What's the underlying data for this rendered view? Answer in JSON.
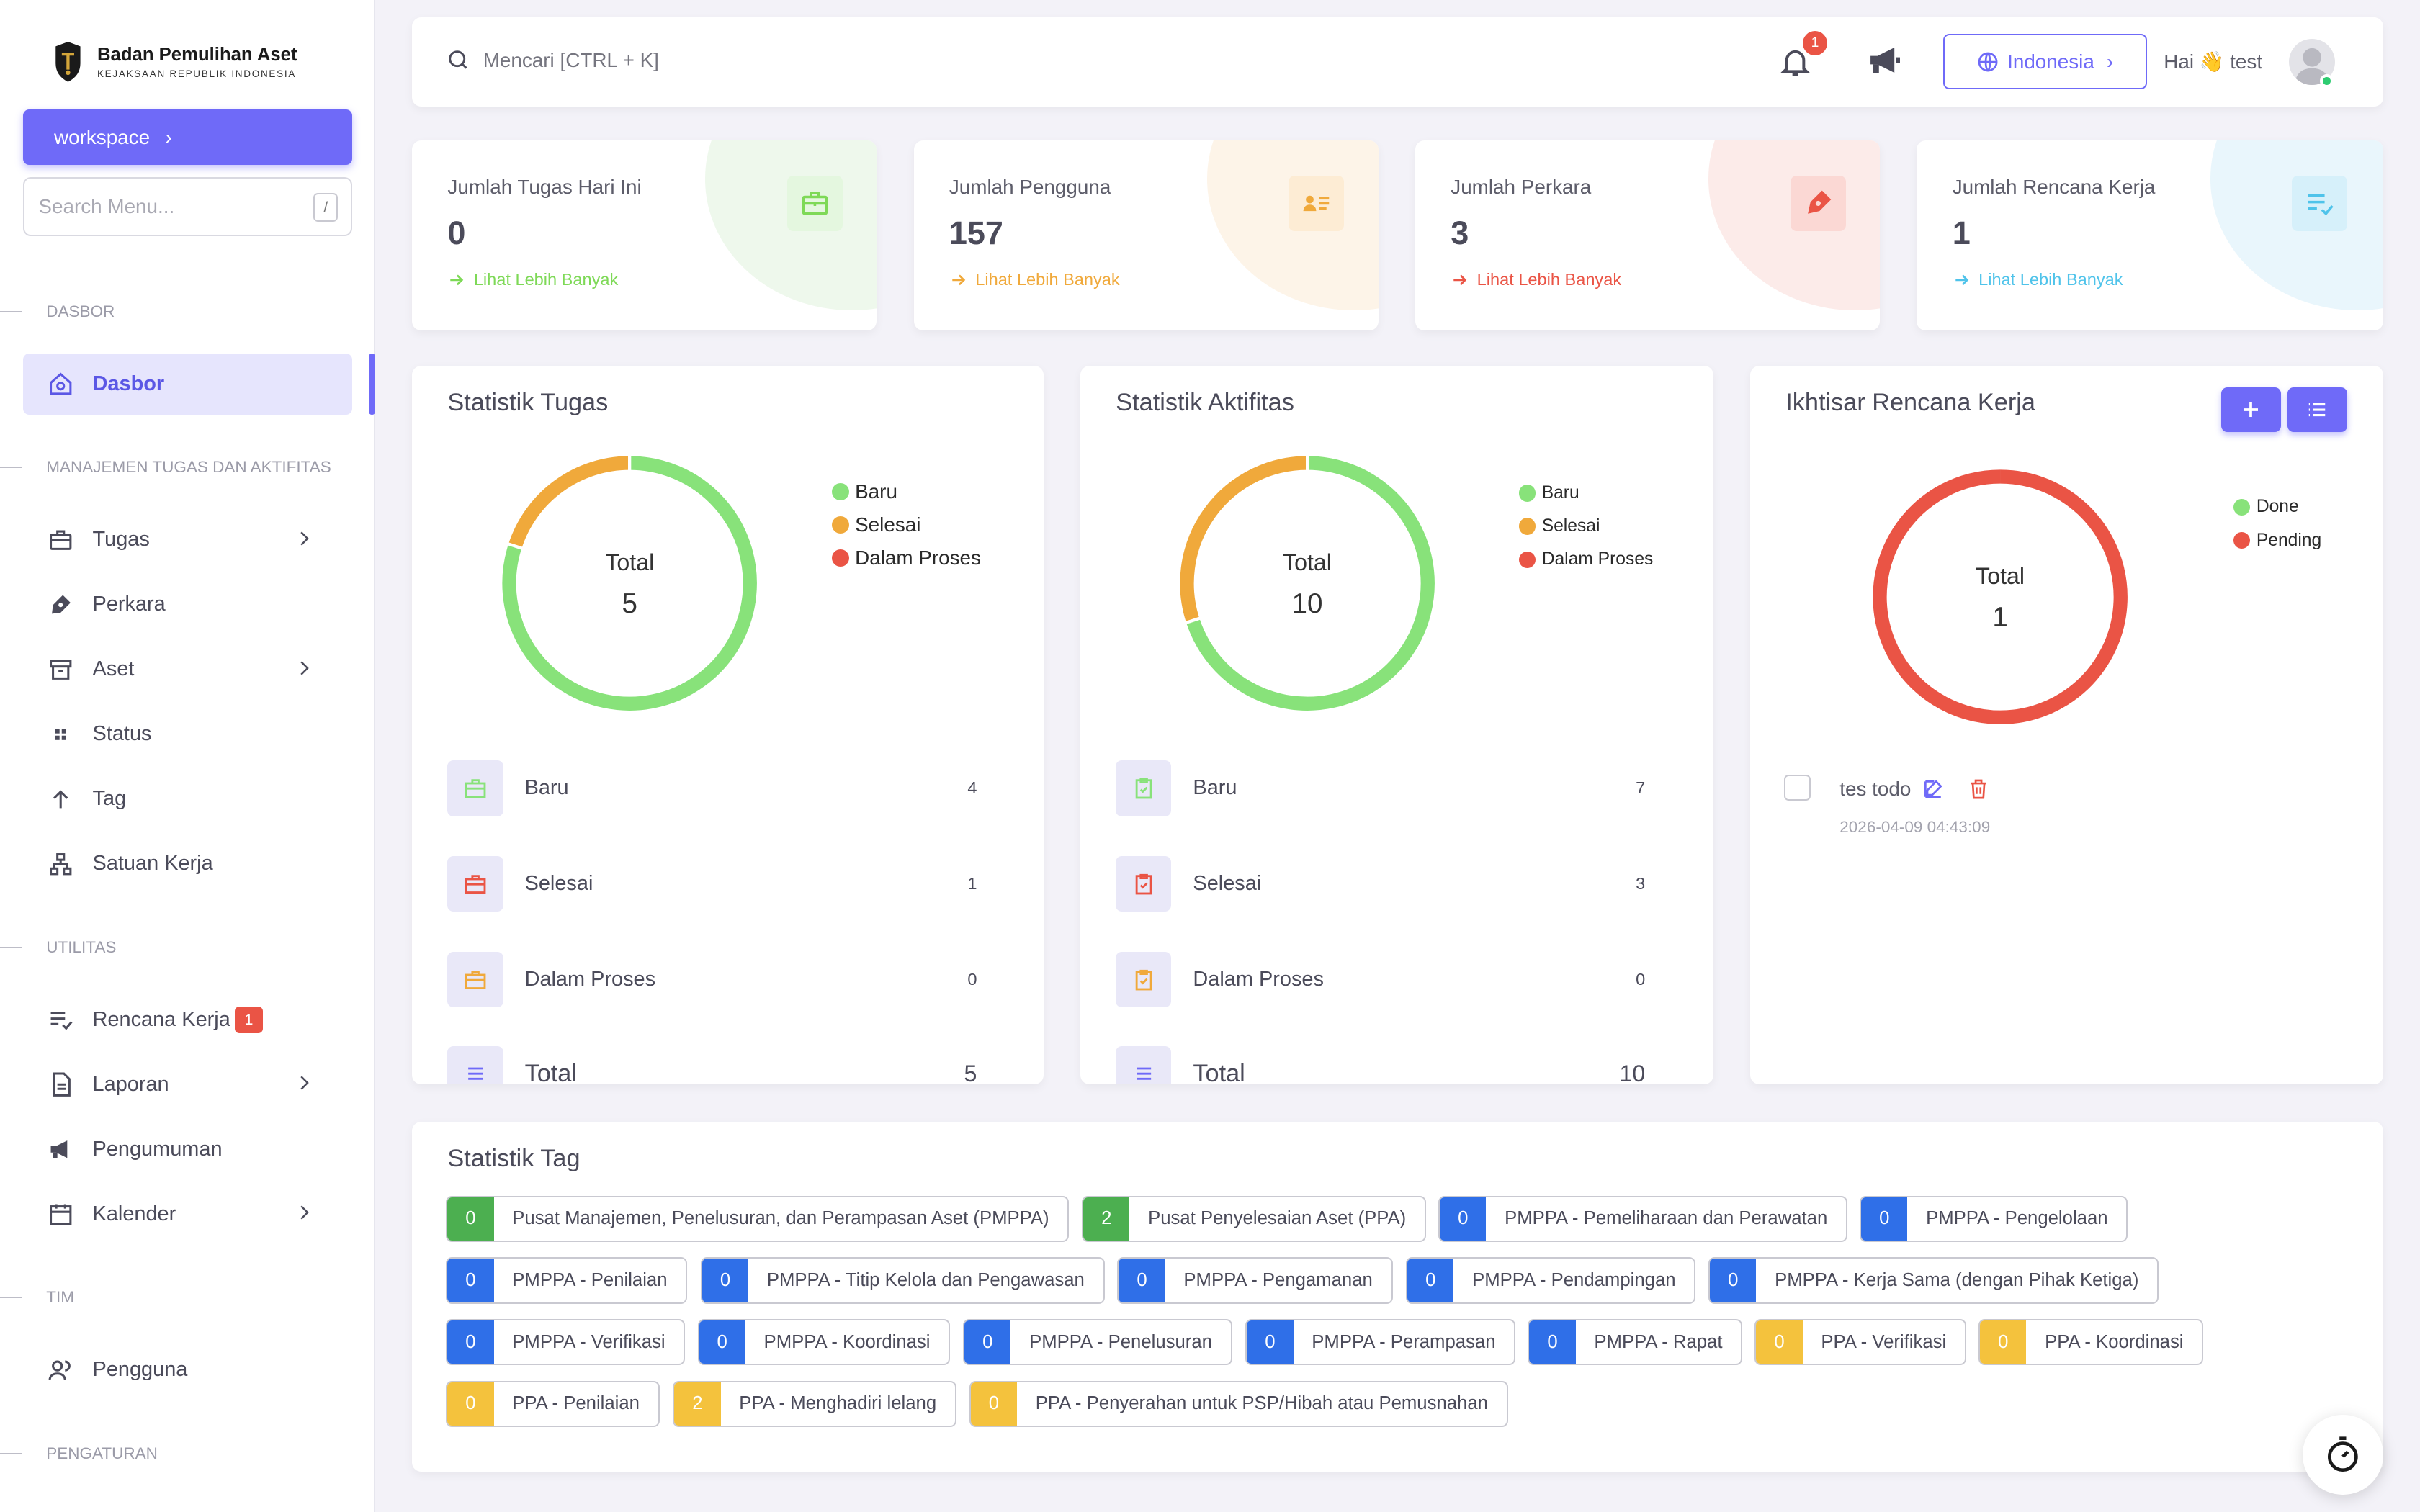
{
  "brand": {
    "name": "Badan Pemulihan Aset",
    "sub": "KEJAKSAAN REPUBLIK INDONESIA"
  },
  "sidebar": {
    "workspace_label": "workspace",
    "search_placeholder": "Search Menu...",
    "search_shortcut": "/",
    "sections": {
      "dasbor": "DASBOR",
      "manajemen": "MANAJEMEN TUGAS DAN AKTIFITAS",
      "utilitas": "UTILITAS",
      "tim": "TIM",
      "pengaturan": "PENGATURAN"
    },
    "items": {
      "dasbor": "Dasbor",
      "tugas": "Tugas",
      "perkara": "Perkara",
      "aset": "Aset",
      "status": "Status",
      "tag": "Tag",
      "satuan_kerja": "Satuan Kerja",
      "rencana_kerja": "Rencana Kerja",
      "rencana_kerja_badge": "1",
      "laporan": "Laporan",
      "pengumuman": "Pengumuman",
      "kalender": "Kalender",
      "pengguna": "Pengguna"
    }
  },
  "topbar": {
    "search_placeholder": "Mencari [CTRL + K]",
    "notif_count": "1",
    "language": "Indonesia",
    "greeting": "Hai 👋 test"
  },
  "stats": [
    {
      "label": "Jumlah Tugas Hari Ini",
      "value": "0",
      "link": "Lihat Lebih Banyak",
      "color": "#7ed957",
      "icon": "briefcase-icon"
    },
    {
      "label": "Jumlah Pengguna",
      "value": "157",
      "link": "Lihat Lebih Banyak",
      "color": "#f0a93b",
      "icon": "id-card-icon"
    },
    {
      "label": "Jumlah Perkara",
      "value": "3",
      "link": "Lihat Lebih Banyak",
      "color": "#ea5445",
      "icon": "pen-nib-icon"
    },
    {
      "label": "Jumlah Rencana Kerja",
      "value": "1",
      "link": "Lihat Lebih Banyak",
      "color": "#4fc3ea",
      "icon": "list-check-icon"
    }
  ],
  "colors": {
    "baru": "#88e27a",
    "selesai": "#f0a93b",
    "proses": "#ea5445",
    "accent": "#6f6af8"
  },
  "tugas": {
    "title": "Statistik Tugas",
    "legend": [
      "Baru",
      "Selesai",
      "Dalam Proses"
    ],
    "total_label": "Total",
    "total": "5",
    "rows": [
      {
        "label": "Baru",
        "count": "4"
      },
      {
        "label": "Selesai",
        "count": "1"
      },
      {
        "label": "Dalam Proses",
        "count": "0"
      }
    ],
    "total_row": "Total",
    "total_row_count": "5"
  },
  "aktifitas": {
    "title": "Statistik Aktifitas",
    "legend": [
      "Baru",
      "Selesai",
      "Dalam Proses"
    ],
    "total_label": "Total",
    "total": "10",
    "rows": [
      {
        "label": "Baru",
        "count": "7"
      },
      {
        "label": "Selesai",
        "count": "3"
      },
      {
        "label": "Dalam Proses",
        "count": "0"
      }
    ],
    "total_row": "Total",
    "total_row_count": "10"
  },
  "rencana": {
    "title": "Ikhtisar Rencana Kerja",
    "legend": [
      "Done",
      "Pending"
    ],
    "total_label": "Total",
    "total": "1",
    "todo": {
      "text": "tes todo",
      "date": "2026-04-09 04:43:09"
    }
  },
  "chart_data": [
    {
      "type": "pie",
      "title": "Statistik Tugas",
      "categories": [
        "Baru",
        "Selesai",
        "Dalam Proses"
      ],
      "values": [
        4,
        1,
        0
      ]
    },
    {
      "type": "pie",
      "title": "Statistik Aktifitas",
      "categories": [
        "Baru",
        "Selesai",
        "Dalam Proses"
      ],
      "values": [
        7,
        3,
        0
      ]
    },
    {
      "type": "pie",
      "title": "Ikhtisar Rencana Kerja",
      "categories": [
        "Done",
        "Pending"
      ],
      "values": [
        0,
        1
      ]
    }
  ],
  "tag_stats": {
    "title": "Statistik Tag",
    "tags": [
      {
        "count": "0",
        "label": "Pusat Manajemen, Penelusuran, dan Perampasan Aset (PMPPA)",
        "color": "#4caf50"
      },
      {
        "count": "2",
        "label": "Pusat Penyelesaian Aset (PPA)",
        "color": "#4caf50"
      },
      {
        "count": "0",
        "label": "PMPPA - Pemeliharaan dan Perawatan",
        "color": "#2f6fe8"
      },
      {
        "count": "0",
        "label": "PMPPA - Pengelolaan",
        "color": "#2f6fe8"
      },
      {
        "count": "0",
        "label": "PMPPA - Penilaian",
        "color": "#2f6fe8"
      },
      {
        "count": "0",
        "label": "PMPPA - Titip Kelola dan Pengawasan",
        "color": "#2f6fe8"
      },
      {
        "count": "0",
        "label": "PMPPA - Pengamanan",
        "color": "#2f6fe8"
      },
      {
        "count": "0",
        "label": "PMPPA - Pendampingan",
        "color": "#2f6fe8"
      },
      {
        "count": "0",
        "label": "PMPPA - Kerja Sama (dengan Pihak Ketiga)",
        "color": "#2f6fe8"
      },
      {
        "count": "0",
        "label": "PMPPA - Verifikasi",
        "color": "#2f6fe8"
      },
      {
        "count": "0",
        "label": "PMPPA - Koordinasi",
        "color": "#2f6fe8"
      },
      {
        "count": "0",
        "label": "PMPPA - Penelusuran",
        "color": "#2f6fe8"
      },
      {
        "count": "0",
        "label": "PMPPA - Perampasan",
        "color": "#2f6fe8"
      },
      {
        "count": "0",
        "label": "PMPPA - Rapat",
        "color": "#2f6fe8"
      },
      {
        "count": "0",
        "label": "PPA - Verifikasi",
        "color": "#f4c23d"
      },
      {
        "count": "0",
        "label": "PPA - Koordinasi",
        "color": "#f4c23d"
      },
      {
        "count": "0",
        "label": "PPA - Penilaian",
        "color": "#f4c23d"
      },
      {
        "count": "2",
        "label": "PPA - Menghadiri lelang",
        "color": "#f4c23d"
      },
      {
        "count": "0",
        "label": "PPA - Penyerahan untuk PSP/Hibah atau Pemusnahan",
        "color": "#f4c23d"
      }
    ]
  }
}
